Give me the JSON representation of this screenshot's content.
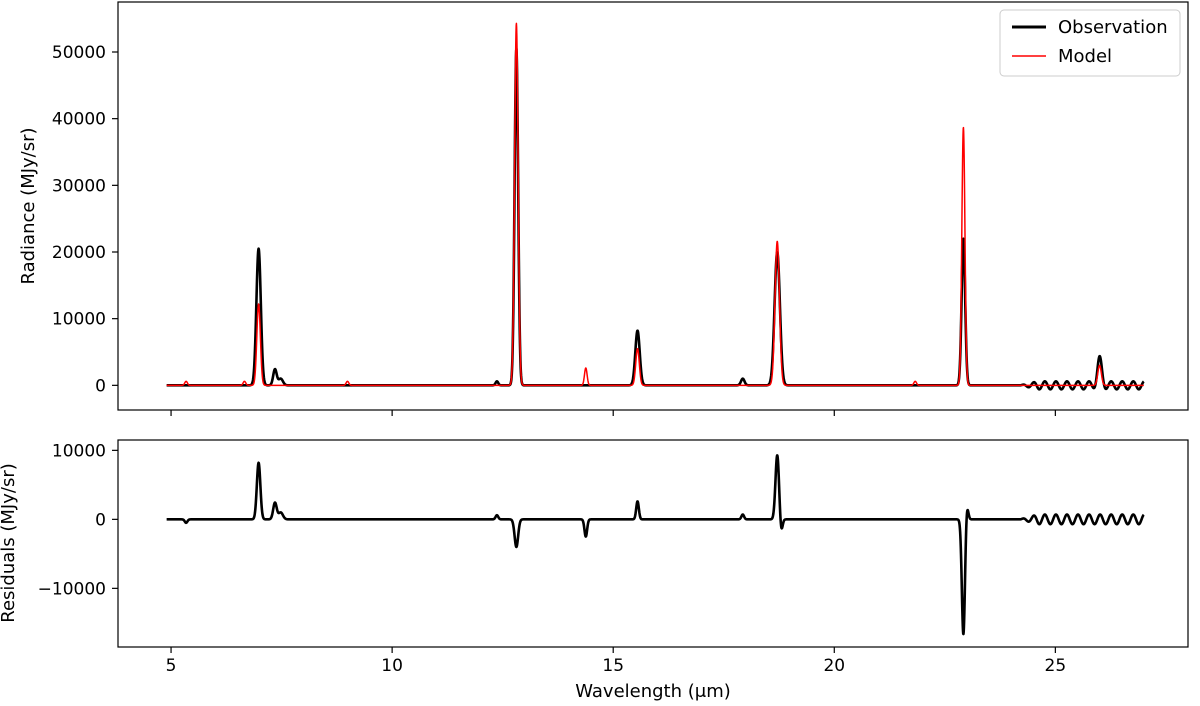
{
  "chart_data": [
    {
      "panel": "top",
      "type": "line",
      "xlabel": "Wavelength (μm)",
      "ylabel": "Radiance (MJy/sr)",
      "xlim": [
        3.8,
        28.0
      ],
      "ylim": [
        -3700,
        57500
      ],
      "xticks": [
        5,
        10,
        15,
        20,
        25
      ],
      "yticks": [
        0,
        10000,
        20000,
        30000,
        40000,
        50000
      ],
      "ytick_labels": [
        "0",
        "10000",
        "20000",
        "30000",
        "40000",
        "50000"
      ],
      "legend": {
        "position": "upper right",
        "entries": [
          "Observation",
          "Model"
        ]
      },
      "series": [
        {
          "name": "Observation",
          "color": "#000000",
          "baseline": 0,
          "peaks": [
            {
              "x": 6.98,
              "y": 20500,
              "w": 0.05
            },
            {
              "x": 7.35,
              "y": 2400,
              "w": 0.04
            },
            {
              "x": 7.48,
              "y": 1000,
              "w": 0.05
            },
            {
              "x": 12.37,
              "y": 600,
              "w": 0.03
            },
            {
              "x": 12.81,
              "y": 50500,
              "w": 0.04
            },
            {
              "x": 15.55,
              "y": 8200,
              "w": 0.05
            },
            {
              "x": 17.93,
              "y": 1000,
              "w": 0.04
            },
            {
              "x": 18.71,
              "y": 20000,
              "w": 0.06
            },
            {
              "x": 22.92,
              "y": 22000,
              "w": 0.04
            },
            {
              "x": 26.0,
              "y": 3800,
              "w": 0.05
            }
          ],
          "ripple": {
            "start": 24.2,
            "end": 27.0,
            "amplitude": 600,
            "period": 0.25
          }
        },
        {
          "name": "Model",
          "color": "#ff0000",
          "baseline": 0,
          "peaks": [
            {
              "x": 5.34,
              "y": 600,
              "w": 0.03
            },
            {
              "x": 6.66,
              "y": 600,
              "w": 0.03
            },
            {
              "x": 6.98,
              "y": 12200,
              "w": 0.04
            },
            {
              "x": 8.99,
              "y": 600,
              "w": 0.03
            },
            {
              "x": 12.81,
              "y": 54300,
              "w": 0.04
            },
            {
              "x": 14.38,
              "y": 2600,
              "w": 0.03
            },
            {
              "x": 15.55,
              "y": 5500,
              "w": 0.04
            },
            {
              "x": 18.71,
              "y": 21600,
              "w": 0.05
            },
            {
              "x": 21.83,
              "y": 600,
              "w": 0.03
            },
            {
              "x": 22.92,
              "y": 38700,
              "w": 0.035
            },
            {
              "x": 26.0,
              "y": 3000,
              "w": 0.04
            }
          ]
        }
      ]
    },
    {
      "panel": "bottom",
      "type": "line",
      "xlabel": "Wavelength (μm)",
      "ylabel": "Residuals (MJy/sr)",
      "xlim": [
        3.8,
        28.0
      ],
      "ylim": [
        -18500,
        11500
      ],
      "xticks": [
        5,
        10,
        15,
        20,
        25
      ],
      "xtick_labels": [
        "5",
        "10",
        "15",
        "20",
        "25"
      ],
      "yticks": [
        -10000,
        0,
        10000
      ],
      "ytick_labels": [
        "−10000",
        "0",
        "10000"
      ],
      "series": [
        {
          "name": "",
          "color": "#000000",
          "baseline": 0,
          "peaks": [
            {
              "x": 5.34,
              "y": -500,
              "w": 0.03
            },
            {
              "x": 6.98,
              "y": 8200,
              "w": 0.04
            },
            {
              "x": 7.35,
              "y": 2400,
              "w": 0.04
            },
            {
              "x": 7.48,
              "y": 1000,
              "w": 0.05
            },
            {
              "x": 12.37,
              "y": 600,
              "w": 0.03
            },
            {
              "x": 12.81,
              "y": -4000,
              "w": 0.04
            },
            {
              "x": 14.38,
              "y": -2500,
              "w": 0.03
            },
            {
              "x": 15.55,
              "y": 2600,
              "w": 0.03
            },
            {
              "x": 17.93,
              "y": 700,
              "w": 0.03
            },
            {
              "x": 18.71,
              "y": 9300,
              "w": 0.04
            },
            {
              "x": 18.8,
              "y": -1800,
              "w": 0.03
            },
            {
              "x": 22.92,
              "y": -16700,
              "w": 0.035
            },
            {
              "x": 23.0,
              "y": 2000,
              "w": 0.03
            }
          ],
          "ripple": {
            "start": 24.2,
            "end": 27.0,
            "amplitude": 700,
            "period": 0.25
          }
        }
      ]
    }
  ]
}
